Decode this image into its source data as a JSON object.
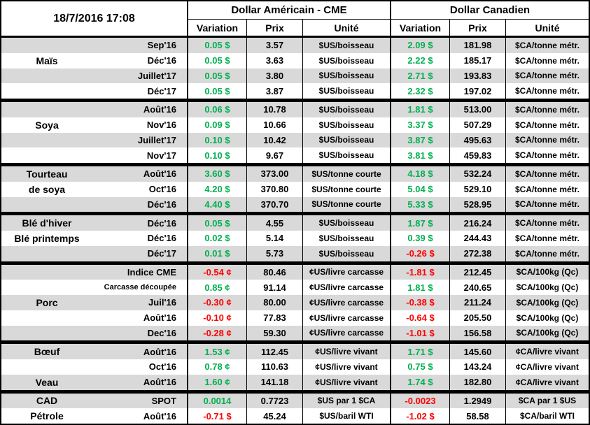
{
  "colors": {
    "up": "#00B050",
    "down": "#FF0000",
    "stripe": "#D9D9D9"
  },
  "header": {
    "timestamp": "18/7/2016 17:08",
    "usd_group": "Dollar Américain - CME",
    "cad_group": "Dollar Canadien",
    "columns": {
      "variation": "Variation",
      "prix": "Prix",
      "unite": "Unité"
    }
  },
  "groups": [
    {
      "name": "Maïs",
      "rows": [
        {
          "label": "",
          "month": "Sep'16",
          "uvar": "0.05 $",
          "udir": "up",
          "uprix": "3.57",
          "uunit": "$US/boisseau",
          "cvar": "2.09 $",
          "cdir": "up",
          "cprix": "181.98",
          "cunit": "$CA/tonne métr."
        },
        {
          "label": "Maïs",
          "month": "Déc'16",
          "uvar": "0.05 $",
          "udir": "up",
          "uprix": "3.63",
          "uunit": "$US/boisseau",
          "cvar": "2.22 $",
          "cdir": "up",
          "cprix": "185.17",
          "cunit": "$CA/tonne métr."
        },
        {
          "label": "",
          "month": "Juillet'17",
          "uvar": "0.05 $",
          "udir": "up",
          "uprix": "3.80",
          "uunit": "$US/boisseau",
          "cvar": "2.71 $",
          "cdir": "up",
          "cprix": "193.83",
          "cunit": "$CA/tonne métr."
        },
        {
          "label": "",
          "month": "Déc'17",
          "uvar": "0.05 $",
          "udir": "up",
          "uprix": "3.87",
          "uunit": "$US/boisseau",
          "cvar": "2.32 $",
          "cdir": "up",
          "cprix": "197.02",
          "cunit": "$CA/tonne métr."
        }
      ]
    },
    {
      "name": "Soya",
      "rows": [
        {
          "label": "",
          "month": "Août'16",
          "uvar": "0.06 $",
          "udir": "up",
          "uprix": "10.78",
          "uunit": "$US/boisseau",
          "cvar": "1.81 $",
          "cdir": "up",
          "cprix": "513.00",
          "cunit": "$CA/tonne métr."
        },
        {
          "label": "Soya",
          "month": "Nov'16",
          "uvar": "0.09 $",
          "udir": "up",
          "uprix": "10.66",
          "uunit": "$US/boisseau",
          "cvar": "3.37 $",
          "cdir": "up",
          "cprix": "507.29",
          "cunit": "$CA/tonne métr."
        },
        {
          "label": "",
          "month": "Juillet'17",
          "uvar": "0.10 $",
          "udir": "up",
          "uprix": "10.42",
          "uunit": "$US/boisseau",
          "cvar": "3.87 $",
          "cdir": "up",
          "cprix": "495.63",
          "cunit": "$CA/tonne métr."
        },
        {
          "label": "",
          "month": "Nov'17",
          "uvar": "0.10 $",
          "udir": "up",
          "uprix": "9.67",
          "uunit": "$US/boisseau",
          "cvar": "3.81 $",
          "cdir": "up",
          "cprix": "459.83",
          "cunit": "$CA/tonne métr."
        }
      ]
    },
    {
      "name": "Tourteau de soya",
      "rows": [
        {
          "label": "Tourteau",
          "month": "Août'16",
          "uvar": "3.60 $",
          "udir": "up",
          "uprix": "373.00",
          "uunit": "$US/tonne courte",
          "cvar": "4.18 $",
          "cdir": "up",
          "cprix": "532.24",
          "cunit": "$CA/tonne métr."
        },
        {
          "label": "de soya",
          "month": "Oct'16",
          "uvar": "4.20 $",
          "udir": "up",
          "uprix": "370.80",
          "uunit": "$US/tonne courte",
          "cvar": "5.04 $",
          "cdir": "up",
          "cprix": "529.10",
          "cunit": "$CA/tonne métr."
        },
        {
          "label": "",
          "month": "Déc'16",
          "uvar": "4.40 $",
          "udir": "up",
          "uprix": "370.70",
          "uunit": "$US/tonne courte",
          "cvar": "5.33 $",
          "cdir": "up",
          "cprix": "528.95",
          "cunit": "$CA/tonne métr."
        }
      ]
    },
    {
      "name": "Blé",
      "rows": [
        {
          "label": "Blé d'hiver",
          "month": "Déc'16",
          "uvar": "0.05 $",
          "udir": "up",
          "uprix": "4.55",
          "uunit": "$US/boisseau",
          "cvar": "1.87 $",
          "cdir": "up",
          "cprix": "216.24",
          "cunit": "$CA/tonne métr."
        },
        {
          "label": "Blé printemps",
          "month": "Déc'16",
          "uvar": "0.02 $",
          "udir": "up",
          "uprix": "5.14",
          "uunit": "$US/boisseau",
          "cvar": "0.39 $",
          "cdir": "up",
          "cprix": "244.43",
          "cunit": "$CA/tonne métr."
        },
        {
          "label": "",
          "month": "Déc'17",
          "uvar": "0.01 $",
          "udir": "up",
          "uprix": "5.73",
          "uunit": "$US/boisseau",
          "cvar": "-0.26 $",
          "cdir": "down",
          "cprix": "272.38",
          "cunit": "$CA/tonne métr."
        }
      ]
    },
    {
      "name": "Porc",
      "rows": [
        {
          "label": "",
          "month": "Indice CME",
          "uvar": "-0.54 ¢",
          "udir": "down",
          "uprix": "80.46",
          "uunit": "¢US/livre carcasse",
          "cvar": "-1.81 $",
          "cdir": "down",
          "cprix": "212.45",
          "cunit": "$CA/100kg (Qc)"
        },
        {
          "label": "",
          "month": "Carcasse découpée",
          "uvar": "0.85 ¢",
          "udir": "up",
          "uprix": "91.14",
          "uunit": "¢US/livre carcasse",
          "cvar": "1.81 $",
          "cdir": "up",
          "cprix": "240.65",
          "cunit": "$CA/100kg (Qc)"
        },
        {
          "label": "Porc",
          "month": "Juil'16",
          "uvar": "-0.30 ¢",
          "udir": "down",
          "uprix": "80.00",
          "uunit": "¢US/livre carcasse",
          "cvar": "-0.38 $",
          "cdir": "down",
          "cprix": "211.24",
          "cunit": "$CA/100kg (Qc)"
        },
        {
          "label": "",
          "month": "Août'16",
          "uvar": "-0.10 ¢",
          "udir": "down",
          "uprix": "77.83",
          "uunit": "¢US/livre carcasse",
          "cvar": "-0.64 $",
          "cdir": "down",
          "cprix": "205.50",
          "cunit": "$CA/100kg (Qc)"
        },
        {
          "label": "",
          "month": "Dec'16",
          "uvar": "-0.28 ¢",
          "udir": "down",
          "uprix": "59.30",
          "uunit": "¢US/livre carcasse",
          "cvar": "-1.01 $",
          "cdir": "down",
          "cprix": "156.58",
          "cunit": "$CA/100kg (Qc)"
        }
      ]
    },
    {
      "name": "Bœuf / Veau",
      "rows": [
        {
          "label": "Bœuf",
          "month": "Août'16",
          "uvar": "1.53 ¢",
          "udir": "up",
          "uprix": "112.45",
          "uunit": "¢US/livre vivant",
          "cvar": "1.71 $",
          "cdir": "up",
          "cprix": "145.60",
          "cunit": "¢CA/livre vivant"
        },
        {
          "label": "",
          "month": "Oct'16",
          "uvar": "0.78 ¢",
          "udir": "up",
          "uprix": "110.63",
          "uunit": "¢US/livre vivant",
          "cvar": "0.75 $",
          "cdir": "up",
          "cprix": "143.24",
          "cunit": "¢CA/livre vivant"
        },
        {
          "label": "Veau",
          "month": "Août'16",
          "uvar": "1.60 ¢",
          "udir": "up",
          "uprix": "141.18",
          "uunit": "¢US/livre vivant",
          "cvar": "1.74 $",
          "cdir": "up",
          "cprix": "182.80",
          "cunit": "¢CA/livre vivant"
        }
      ]
    },
    {
      "name": "CAD / Pétrole",
      "rows": [
        {
          "label": "CAD",
          "month": "SPOT",
          "uvar": "0.0014",
          "udir": "up",
          "uprix": "0.7723",
          "uunit": "$US par 1 $CA",
          "cvar": "-0.0023",
          "cdir": "down",
          "cprix": "1.2949",
          "cunit": "$CA par 1 $US"
        },
        {
          "label": "Pétrole",
          "month": "Août'16",
          "uvar": "-0.71 $",
          "udir": "down",
          "uprix": "45.24",
          "uunit": "$US/baril WTI",
          "cvar": "-1.02 $",
          "cdir": "down",
          "cprix": "58.58",
          "cunit": "$CA/baril WTI"
        }
      ]
    }
  ],
  "chart_data": {
    "type": "table",
    "title": "18/7/2016 17:08",
    "column_groups": [
      "",
      "Dollar Américain - CME",
      "Dollar Canadien"
    ],
    "columns": [
      "",
      "",
      "Variation",
      "Prix",
      "Unité",
      "Variation",
      "Prix",
      "Unité"
    ],
    "rows": [
      [
        "",
        "Sep'16",
        "0.05 $",
        "3.57",
        "$US/boisseau",
        "2.09 $",
        "181.98",
        "$CA/tonne métr."
      ],
      [
        "Maïs",
        "Déc'16",
        "0.05 $",
        "3.63",
        "$US/boisseau",
        "2.22 $",
        "185.17",
        "$CA/tonne métr."
      ],
      [
        "",
        "Juillet'17",
        "0.05 $",
        "3.80",
        "$US/boisseau",
        "2.71 $",
        "193.83",
        "$CA/tonne métr."
      ],
      [
        "",
        "Déc'17",
        "0.05 $",
        "3.87",
        "$US/boisseau",
        "2.32 $",
        "197.02",
        "$CA/tonne métr."
      ],
      [
        "",
        "Août'16",
        "0.06 $",
        "10.78",
        "$US/boisseau",
        "1.81 $",
        "513.00",
        "$CA/tonne métr."
      ],
      [
        "Soya",
        "Nov'16",
        "0.09 $",
        "10.66",
        "$US/boisseau",
        "3.37 $",
        "507.29",
        "$CA/tonne métr."
      ],
      [
        "",
        "Juillet'17",
        "0.10 $",
        "10.42",
        "$US/boisseau",
        "3.87 $",
        "495.63",
        "$CA/tonne métr."
      ],
      [
        "",
        "Nov'17",
        "0.10 $",
        "9.67",
        "$US/boisseau",
        "3.81 $",
        "459.83",
        "$CA/tonne métr."
      ],
      [
        "Tourteau",
        "Août'16",
        "3.60 $",
        "373.00",
        "$US/tonne courte",
        "4.18 $",
        "532.24",
        "$CA/tonne métr."
      ],
      [
        "de soya",
        "Oct'16",
        "4.20 $",
        "370.80",
        "$US/tonne courte",
        "5.04 $",
        "529.10",
        "$CA/tonne métr."
      ],
      [
        "",
        "Déc'16",
        "4.40 $",
        "370.70",
        "$US/tonne courte",
        "5.33 $",
        "528.95",
        "$CA/tonne métr."
      ],
      [
        "Blé d'hiver",
        "Déc'16",
        "0.05 $",
        "4.55",
        "$US/boisseau",
        "1.87 $",
        "216.24",
        "$CA/tonne métr."
      ],
      [
        "Blé printemps",
        "Déc'16",
        "0.02 $",
        "5.14",
        "$US/boisseau",
        "0.39 $",
        "244.43",
        "$CA/tonne métr."
      ],
      [
        "",
        "Déc'17",
        "0.01 $",
        "5.73",
        "$US/boisseau",
        "-0.26 $",
        "272.38",
        "$CA/tonne métr."
      ],
      [
        "",
        "Indice CME",
        "-0.54 ¢",
        "80.46",
        "¢US/livre carcasse",
        "-1.81 $",
        "212.45",
        "$CA/100kg (Qc)"
      ],
      [
        "",
        "Carcasse découpée",
        "0.85 ¢",
        "91.14",
        "¢US/livre carcasse",
        "1.81 $",
        "240.65",
        "$CA/100kg (Qc)"
      ],
      [
        "Porc",
        "Juil'16",
        "-0.30 ¢",
        "80.00",
        "¢US/livre carcasse",
        "-0.38 $",
        "211.24",
        "$CA/100kg (Qc)"
      ],
      [
        "",
        "Août'16",
        "-0.10 ¢",
        "77.83",
        "¢US/livre carcasse",
        "-0.64 $",
        "205.50",
        "$CA/100kg (Qc)"
      ],
      [
        "",
        "Dec'16",
        "-0.28 ¢",
        "59.30",
        "¢US/livre carcasse",
        "-1.01 $",
        "156.58",
        "$CA/100kg (Qc)"
      ],
      [
        "Bœuf",
        "Août'16",
        "1.53 ¢",
        "112.45",
        "¢US/livre vivant",
        "1.71 $",
        "145.60",
        "¢CA/livre vivant"
      ],
      [
        "",
        "Oct'16",
        "0.78 ¢",
        "110.63",
        "¢US/livre vivant",
        "0.75 $",
        "143.24",
        "¢CA/livre vivant"
      ],
      [
        "Veau",
        "Août'16",
        "1.60 ¢",
        "141.18",
        "¢US/livre vivant",
        "1.74 $",
        "182.80",
        "¢CA/livre vivant"
      ],
      [
        "CAD",
        "SPOT",
        "0.0014",
        "0.7723",
        "$US par 1 $CA",
        "-0.0023",
        "1.2949",
        "$CA par 1 $US"
      ],
      [
        "Pétrole",
        "Août'16",
        "-0.71 $",
        "45.24",
        "$US/baril WTI",
        "-1.02 $",
        "58.58",
        "$CA/baril WTI"
      ]
    ]
  }
}
